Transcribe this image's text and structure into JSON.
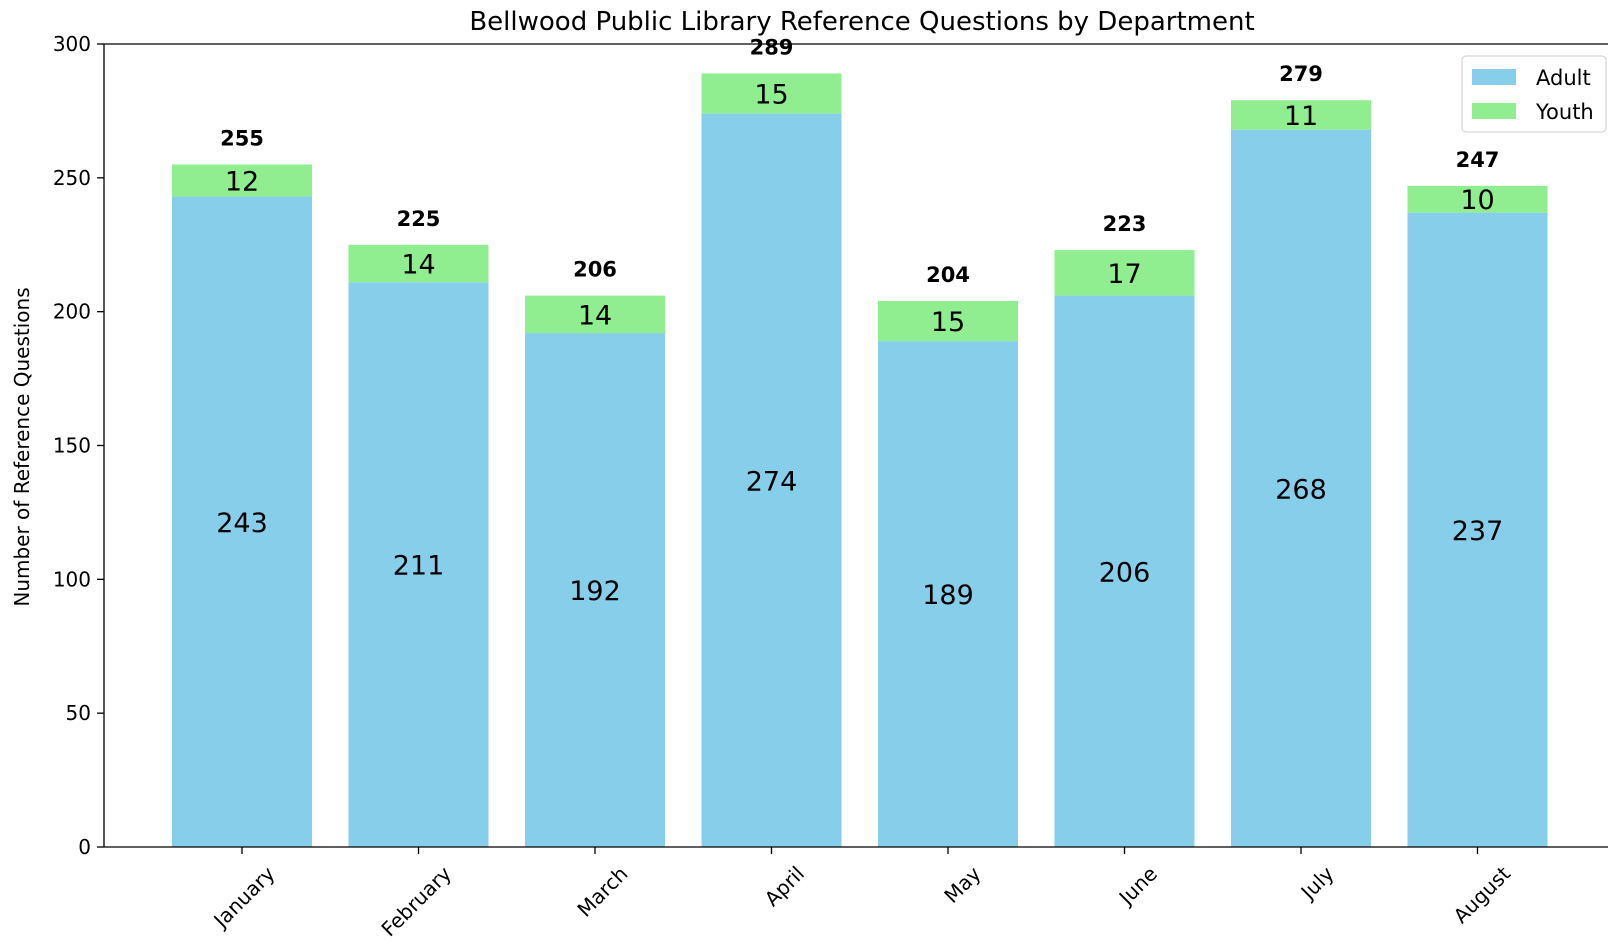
{
  "chart_data": {
    "type": "bar",
    "stacked": true,
    "title": "Bellwood Public Library Reference Questions by Department",
    "xlabel": "",
    "ylabel": "Number of Reference Questions",
    "ylim": [
      0,
      300
    ],
    "yticks": [
      0,
      50,
      100,
      150,
      200,
      250,
      300
    ],
    "categories": [
      "January",
      "February",
      "March",
      "April",
      "May",
      "June",
      "July",
      "August"
    ],
    "series": [
      {
        "name": "Adult",
        "color": "#87ceeb",
        "values": [
          243,
          211,
          192,
          274,
          189,
          206,
          268,
          237
        ]
      },
      {
        "name": "Youth",
        "color": "#90ee90",
        "values": [
          12,
          14,
          14,
          15,
          15,
          17,
          11,
          10
        ]
      }
    ],
    "totals": [
      255,
      225,
      206,
      289,
      204,
      223,
      279,
      247
    ],
    "legend": {
      "placement": "top-right"
    },
    "grid": false
  }
}
